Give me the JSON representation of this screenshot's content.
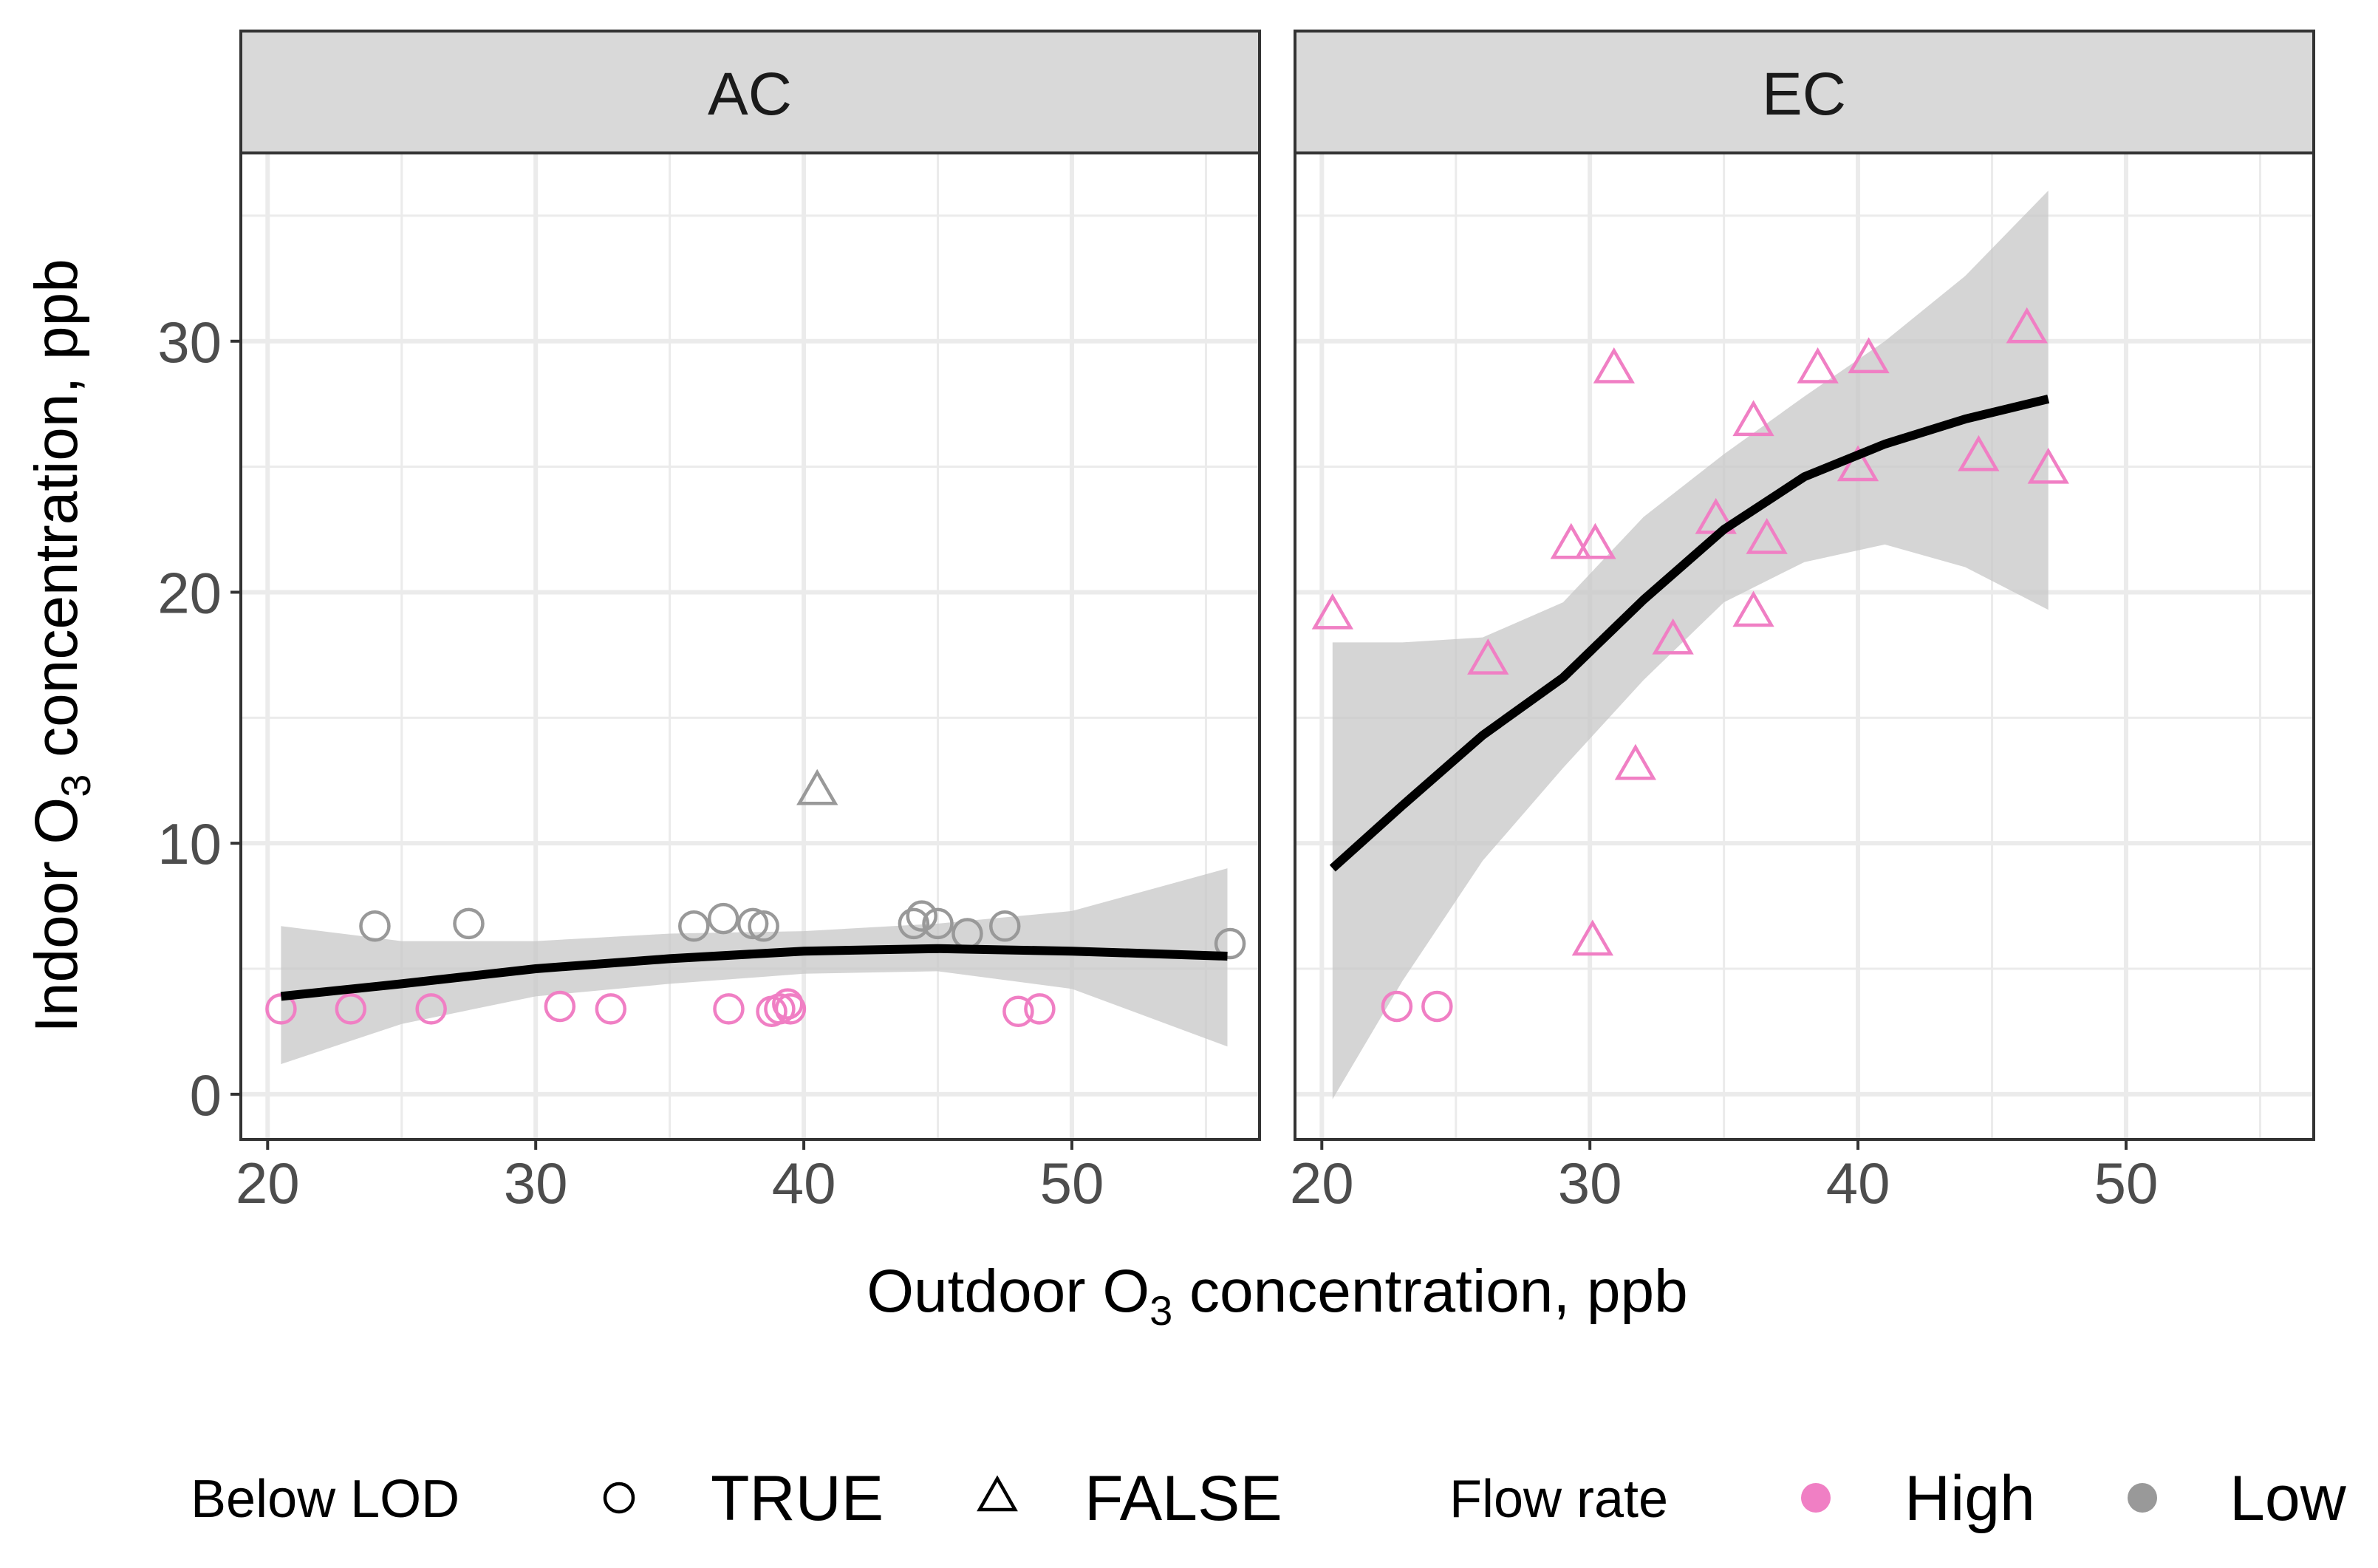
{
  "chart_data": {
    "type": "scatter",
    "facets": [
      "AC",
      "EC"
    ],
    "xlabel": {
      "main": "Outdoor O",
      "sub": "3",
      "rest": " concentration, ppb"
    },
    "ylabel": {
      "main": "Indoor O",
      "sub": "3",
      "rest": " concentration, ppb"
    },
    "xlim": [
      19,
      57
    ],
    "ylim": [
      -1.8,
      37.5
    ],
    "x_ticks": [
      20,
      30,
      40,
      50
    ],
    "y_ticks": [
      0,
      10,
      20,
      30
    ],
    "x_tick_labels": [
      "20",
      "30",
      "40",
      "50"
    ],
    "y_tick_labels": [
      "0",
      "10",
      "20",
      "30"
    ],
    "grid": true,
    "colors": {
      "High": "#f07fc4",
      "Low": "#999999",
      "smooth": "#000000",
      "ribbon": "#c7c7c7"
    },
    "legend": {
      "position": "bottom",
      "shape_title": "Below LOD",
      "shape_items": [
        {
          "label": "TRUE",
          "shape": "circle"
        },
        {
          "label": "FALSE",
          "shape": "triangle"
        }
      ],
      "color_title": "Flow rate",
      "color_items": [
        {
          "label": "High",
          "color": "#f07fc4"
        },
        {
          "label": "Low",
          "color": "#999999"
        }
      ]
    },
    "points": {
      "AC": [
        {
          "x": 20.5,
          "y": 3.4,
          "lod": "TRUE",
          "flow": "High"
        },
        {
          "x": 23.1,
          "y": 3.4,
          "lod": "TRUE",
          "flow": "High"
        },
        {
          "x": 26.1,
          "y": 3.4,
          "lod": "TRUE",
          "flow": "High"
        },
        {
          "x": 30.9,
          "y": 3.5,
          "lod": "TRUE",
          "flow": "High"
        },
        {
          "x": 32.8,
          "y": 3.4,
          "lod": "TRUE",
          "flow": "High"
        },
        {
          "x": 37.2,
          "y": 3.4,
          "lod": "TRUE",
          "flow": "High"
        },
        {
          "x": 38.8,
          "y": 3.3,
          "lod": "TRUE",
          "flow": "High"
        },
        {
          "x": 39.1,
          "y": 3.4,
          "lod": "TRUE",
          "flow": "High"
        },
        {
          "x": 39.4,
          "y": 3.6,
          "lod": "TRUE",
          "flow": "High"
        },
        {
          "x": 39.5,
          "y": 3.4,
          "lod": "TRUE",
          "flow": "High"
        },
        {
          "x": 48.0,
          "y": 3.3,
          "lod": "TRUE",
          "flow": "High"
        },
        {
          "x": 48.8,
          "y": 3.4,
          "lod": "TRUE",
          "flow": "High"
        },
        {
          "x": 24.0,
          "y": 6.7,
          "lod": "TRUE",
          "flow": "Low"
        },
        {
          "x": 27.5,
          "y": 6.8,
          "lod": "TRUE",
          "flow": "Low"
        },
        {
          "x": 35.9,
          "y": 6.7,
          "lod": "TRUE",
          "flow": "Low"
        },
        {
          "x": 37.0,
          "y": 7.0,
          "lod": "TRUE",
          "flow": "Low"
        },
        {
          "x": 38.1,
          "y": 6.8,
          "lod": "TRUE",
          "flow": "Low"
        },
        {
          "x": 38.5,
          "y": 6.7,
          "lod": "TRUE",
          "flow": "Low"
        },
        {
          "x": 44.1,
          "y": 6.8,
          "lod": "TRUE",
          "flow": "Low"
        },
        {
          "x": 44.4,
          "y": 7.1,
          "lod": "TRUE",
          "flow": "Low"
        },
        {
          "x": 45.0,
          "y": 6.8,
          "lod": "TRUE",
          "flow": "Low"
        },
        {
          "x": 46.1,
          "y": 6.4,
          "lod": "TRUE",
          "flow": "Low"
        },
        {
          "x": 47.5,
          "y": 6.7,
          "lod": "TRUE",
          "flow": "Low"
        },
        {
          "x": 55.9,
          "y": 6.0,
          "lod": "TRUE",
          "flow": "Low"
        },
        {
          "x": 40.5,
          "y": 12.0,
          "lod": "FALSE",
          "flow": "Low"
        }
      ],
      "EC": [
        {
          "x": 22.8,
          "y": 3.5,
          "lod": "TRUE",
          "flow": "High"
        },
        {
          "x": 24.3,
          "y": 3.5,
          "lod": "TRUE",
          "flow": "High"
        },
        {
          "x": 20.4,
          "y": 19.0,
          "lod": "FALSE",
          "flow": "High"
        },
        {
          "x": 26.2,
          "y": 17.2,
          "lod": "FALSE",
          "flow": "High"
        },
        {
          "x": 29.3,
          "y": 21.8,
          "lod": "FALSE",
          "flow": "High"
        },
        {
          "x": 30.2,
          "y": 21.8,
          "lod": "FALSE",
          "flow": "High"
        },
        {
          "x": 30.1,
          "y": 6.0,
          "lod": "FALSE",
          "flow": "High"
        },
        {
          "x": 30.9,
          "y": 28.8,
          "lod": "FALSE",
          "flow": "High"
        },
        {
          "x": 31.7,
          "y": 13.0,
          "lod": "FALSE",
          "flow": "High"
        },
        {
          "x": 33.1,
          "y": 18.0,
          "lod": "FALSE",
          "flow": "High"
        },
        {
          "x": 34.7,
          "y": 22.8,
          "lod": "FALSE",
          "flow": "High"
        },
        {
          "x": 36.1,
          "y": 26.7,
          "lod": "FALSE",
          "flow": "High"
        },
        {
          "x": 36.1,
          "y": 19.1,
          "lod": "FALSE",
          "flow": "High"
        },
        {
          "x": 36.6,
          "y": 22.0,
          "lod": "FALSE",
          "flow": "High"
        },
        {
          "x": 38.5,
          "y": 28.8,
          "lod": "FALSE",
          "flow": "High"
        },
        {
          "x": 40.0,
          "y": 24.9,
          "lod": "FALSE",
          "flow": "High"
        },
        {
          "x": 40.4,
          "y": 29.2,
          "lod": "FALSE",
          "flow": "High"
        },
        {
          "x": 44.5,
          "y": 25.3,
          "lod": "FALSE",
          "flow": "High"
        },
        {
          "x": 46.3,
          "y": 30.4,
          "lod": "FALSE",
          "flow": "High"
        },
        {
          "x": 47.1,
          "y": 24.8,
          "lod": "FALSE",
          "flow": "High"
        }
      ]
    },
    "smooth": {
      "AC": [
        {
          "x": 20.5,
          "y": 3.9,
          "lo": 1.2,
          "hi": 6.7
        },
        {
          "x": 25,
          "y": 4.4,
          "lo": 2.8,
          "hi": 6.1
        },
        {
          "x": 30,
          "y": 5.0,
          "lo": 3.9,
          "hi": 6.1
        },
        {
          "x": 35,
          "y": 5.4,
          "lo": 4.4,
          "hi": 6.4
        },
        {
          "x": 40,
          "y": 5.7,
          "lo": 4.8,
          "hi": 6.5
        },
        {
          "x": 45,
          "y": 5.8,
          "lo": 4.9,
          "hi": 6.8
        },
        {
          "x": 50,
          "y": 5.7,
          "lo": 4.2,
          "hi": 7.3
        },
        {
          "x": 55.8,
          "y": 5.5,
          "lo": 1.9,
          "hi": 9.0
        }
      ],
      "EC": [
        {
          "x": 20.4,
          "y": 9.0,
          "lo": -0.2,
          "hi": 18.0
        },
        {
          "x": 23,
          "y": 11.5,
          "lo": 4.5,
          "hi": 18.0
        },
        {
          "x": 26,
          "y": 14.3,
          "lo": 9.3,
          "hi": 18.2
        },
        {
          "x": 29,
          "y": 16.6,
          "lo": 13.0,
          "hi": 19.6
        },
        {
          "x": 32,
          "y": 19.7,
          "lo": 16.5,
          "hi": 23.0
        },
        {
          "x": 35,
          "y": 22.5,
          "lo": 19.6,
          "hi": 25.5
        },
        {
          "x": 38,
          "y": 24.6,
          "lo": 21.2,
          "hi": 27.8
        },
        {
          "x": 41,
          "y": 25.9,
          "lo": 21.9,
          "hi": 30.0
        },
        {
          "x": 44,
          "y": 26.9,
          "lo": 21.0,
          "hi": 32.6
        },
        {
          "x": 47.1,
          "y": 27.7,
          "lo": 19.3,
          "hi": 36.0
        }
      ]
    }
  }
}
